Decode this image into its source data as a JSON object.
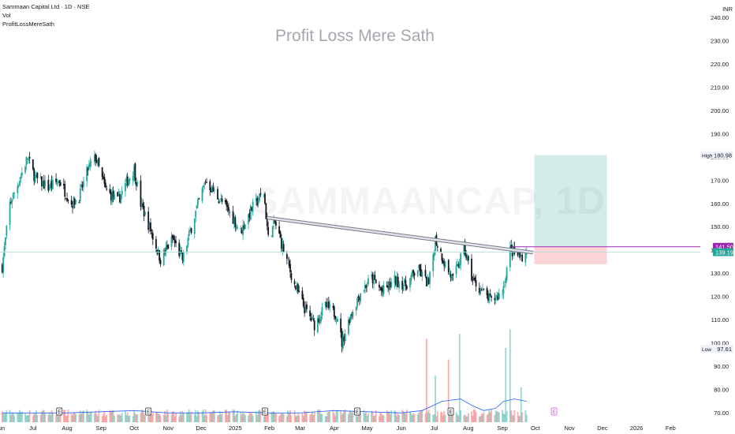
{
  "header": {
    "symbol_line": "Sammaan Capital Ltd · 1D · NSE",
    "vol_label": "Vol",
    "indicator_label": "ProfitLossMereSath"
  },
  "watermark": {
    "title": "Profit Loss Mere Sath",
    "symbol": "SAMMAANCAP, 1D"
  },
  "currency": "INR",
  "colors": {
    "up": "#26a69a",
    "down": "#131722",
    "target_zone": "#b2dfdb",
    "stop_zone": "#f8c6c9",
    "level_line": "#9c27b0",
    "vol_ma": "#2962ff"
  },
  "chart_data": {
    "type": "candlestick",
    "title": "Sammaan Capital Ltd · 1D · NSE",
    "currency": "INR",
    "ylim": [
      65,
      245
    ],
    "y_ticks": [
      "240.00",
      "230.00",
      "220.00",
      "210.00",
      "200.00",
      "190.00",
      "180.00",
      "170.00",
      "160.00",
      "150.00",
      "140.00",
      "130.00",
      "120.00",
      "110.00",
      "100.00",
      "90.00",
      "80.00",
      "70.00"
    ],
    "x_ticks": [
      "Jun",
      "Jul",
      "Aug",
      "Sep",
      "Oct",
      "Nov",
      "Dec",
      "2025",
      "Feb",
      "Mar",
      "Apr",
      "May",
      "Jun",
      "Jul",
      "Aug",
      "Sep",
      "Oct",
      "Nov",
      "Dec",
      "2026",
      "Feb"
    ],
    "price_path": [
      [
        "2024-06-03",
        133
      ],
      [
        "2024-06-10",
        160
      ],
      [
        "2024-06-20",
        172
      ],
      [
        "2024-06-26",
        180
      ],
      [
        "2024-07-03",
        171
      ],
      [
        "2024-07-15",
        167
      ],
      [
        "2024-07-25",
        170
      ],
      [
        "2024-08-05",
        160
      ],
      [
        "2024-08-12",
        163
      ],
      [
        "2024-08-20",
        175
      ],
      [
        "2024-08-27",
        180
      ],
      [
        "2024-09-05",
        166
      ],
      [
        "2024-09-16",
        161
      ],
      [
        "2024-09-25",
        170
      ],
      [
        "2024-10-01",
        175
      ],
      [
        "2024-10-07",
        160
      ],
      [
        "2024-10-15",
        150
      ],
      [
        "2024-10-25",
        136
      ],
      [
        "2024-11-05",
        145
      ],
      [
        "2024-11-14",
        136
      ],
      [
        "2024-11-25",
        155
      ],
      [
        "2024-12-05",
        170
      ],
      [
        "2024-12-16",
        163
      ],
      [
        "2024-12-26",
        157
      ],
      [
        "2025-01-06",
        148
      ],
      [
        "2025-01-16",
        158
      ],
      [
        "2025-01-27",
        165
      ],
      [
        "2025-01-31",
        145
      ],
      [
        "2025-02-06",
        152
      ],
      [
        "2025-02-14",
        140
      ],
      [
        "2025-02-24",
        125
      ],
      [
        "2025-03-05",
        115
      ],
      [
        "2025-03-14",
        108
      ],
      [
        "2025-03-24",
        116
      ],
      [
        "2025-04-04",
        112
      ],
      [
        "2025-04-08",
        100
      ],
      [
        "2025-04-15",
        111
      ],
      [
        "2025-04-25",
        122
      ],
      [
        "2025-05-05",
        128
      ],
      [
        "2025-05-15",
        122
      ],
      [
        "2025-05-26",
        127
      ],
      [
        "2025-06-05",
        125
      ],
      [
        "2025-06-16",
        132
      ],
      [
        "2025-06-26",
        125
      ],
      [
        "2025-07-02",
        145
      ],
      [
        "2025-07-10",
        135
      ],
      [
        "2025-07-18",
        127
      ],
      [
        "2025-07-28",
        141
      ],
      [
        "2025-08-05",
        127
      ],
      [
        "2025-08-14",
        122
      ],
      [
        "2025-08-22",
        118
      ],
      [
        "2025-09-01",
        122
      ],
      [
        "2025-09-08",
        140
      ],
      [
        "2025-09-17",
        137
      ],
      [
        "2025-09-23",
        139.19
      ]
    ],
    "volume_ma": [
      [
        "2024-06-03",
        70
      ],
      [
        "2024-07-01",
        70
      ],
      [
        "2024-08-01",
        70
      ],
      [
        "2024-09-01",
        70.5
      ],
      [
        "2024-10-01",
        71
      ],
      [
        "2024-11-01",
        70
      ],
      [
        "2024-12-01",
        70
      ],
      [
        "2025-01-01",
        70.5
      ],
      [
        "2025-02-01",
        70
      ],
      [
        "2025-03-01",
        70
      ],
      [
        "2025-04-01",
        71
      ],
      [
        "2025-05-01",
        70.5
      ],
      [
        "2025-06-01",
        70
      ],
      [
        "2025-06-20",
        71
      ],
      [
        "2025-07-08",
        75
      ],
      [
        "2025-07-25",
        76
      ],
      [
        "2025-08-05",
        73
      ],
      [
        "2025-08-15",
        71
      ],
      [
        "2025-08-26",
        72
      ],
      [
        "2025-09-02",
        75
      ],
      [
        "2025-09-12",
        76
      ],
      [
        "2025-09-23",
        75
      ]
    ],
    "volume_spikes": [
      [
        "2025-06-24",
        102
      ],
      [
        "2025-07-02",
        86
      ],
      [
        "2025-07-14",
        93
      ],
      [
        "2025-07-24",
        104
      ],
      [
        "2025-09-04",
        98
      ],
      [
        "2025-09-08",
        106
      ],
      [
        "2025-09-18",
        81
      ]
    ],
    "trendline": {
      "from": [
        "2025-01-30",
        154
      ],
      "to": [
        "2025-09-29",
        139
      ]
    },
    "level_line": {
      "price": 141.5,
      "from": "2025-09-08"
    },
    "position": {
      "from": "2025-09-30",
      "to": "2025-12-05",
      "entry": 141.5,
      "target": 180.98,
      "stop": 134.0
    },
    "current_price_line": 139.19,
    "labels": [
      {
        "text": "141.50",
        "price": 141.5,
        "style": "level"
      },
      {
        "text": "139.19",
        "price": 139.19,
        "style": "last"
      },
      {
        "label": "High",
        "text": "180.98",
        "price": 180.98,
        "style": "plain"
      },
      {
        "label": "Low",
        "text": "97.61",
        "price": 97.61,
        "style": "plain"
      }
    ],
    "event_markers": [
      {
        "date": "2024-07-25",
        "label": "E"
      },
      {
        "date": "2024-10-14",
        "label": "E"
      },
      {
        "date": "2025-01-28",
        "label": "E"
      },
      {
        "date": "2025-04-22",
        "label": "E"
      },
      {
        "date": "2025-07-16",
        "label": "E"
      },
      {
        "date": "2025-10-18",
        "label": "E"
      }
    ]
  }
}
